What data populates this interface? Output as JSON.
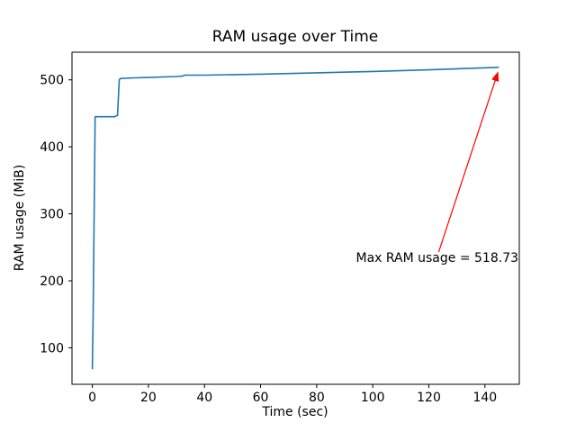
{
  "chart_data": {
    "type": "line",
    "title": "RAM usage over Time",
    "xlabel": "Time (sec)",
    "ylabel": "RAM usage (MiB)",
    "xlim": [
      -7.25,
      152.25
    ],
    "ylim": [
      45.5,
      541.3
    ],
    "xticks": [
      0,
      20,
      40,
      60,
      80,
      100,
      120,
      140
    ],
    "yticks": [
      100,
      200,
      300,
      400,
      500
    ],
    "grid": false,
    "legend": "none",
    "line_color": "#1f77b4",
    "line_width": 1.6,
    "background_color": "#ffffff",
    "series": [
      {
        "name": "RAM usage",
        "x": [
          0,
          0.3,
          1,
          8,
          8.3,
          9,
          9.6,
          10,
          15,
          20,
          30,
          32,
          33,
          40,
          60,
          80,
          100,
          120,
          145
        ],
        "y": [
          68,
          150,
          445,
          445,
          446,
          447,
          500,
          502,
          503,
          503.5,
          505,
          505.5,
          507,
          507,
          508.5,
          510.5,
          512.5,
          515,
          518.73
        ]
      }
    ],
    "annotation": {
      "text": "Max RAM usage = 518.73",
      "color": "#ff0000",
      "text_x": 94,
      "text_y": 228,
      "arrow_from_x": 123.5,
      "arrow_from_y": 243,
      "arrow_to_x": 144.6,
      "arrow_to_y": 511
    }
  }
}
